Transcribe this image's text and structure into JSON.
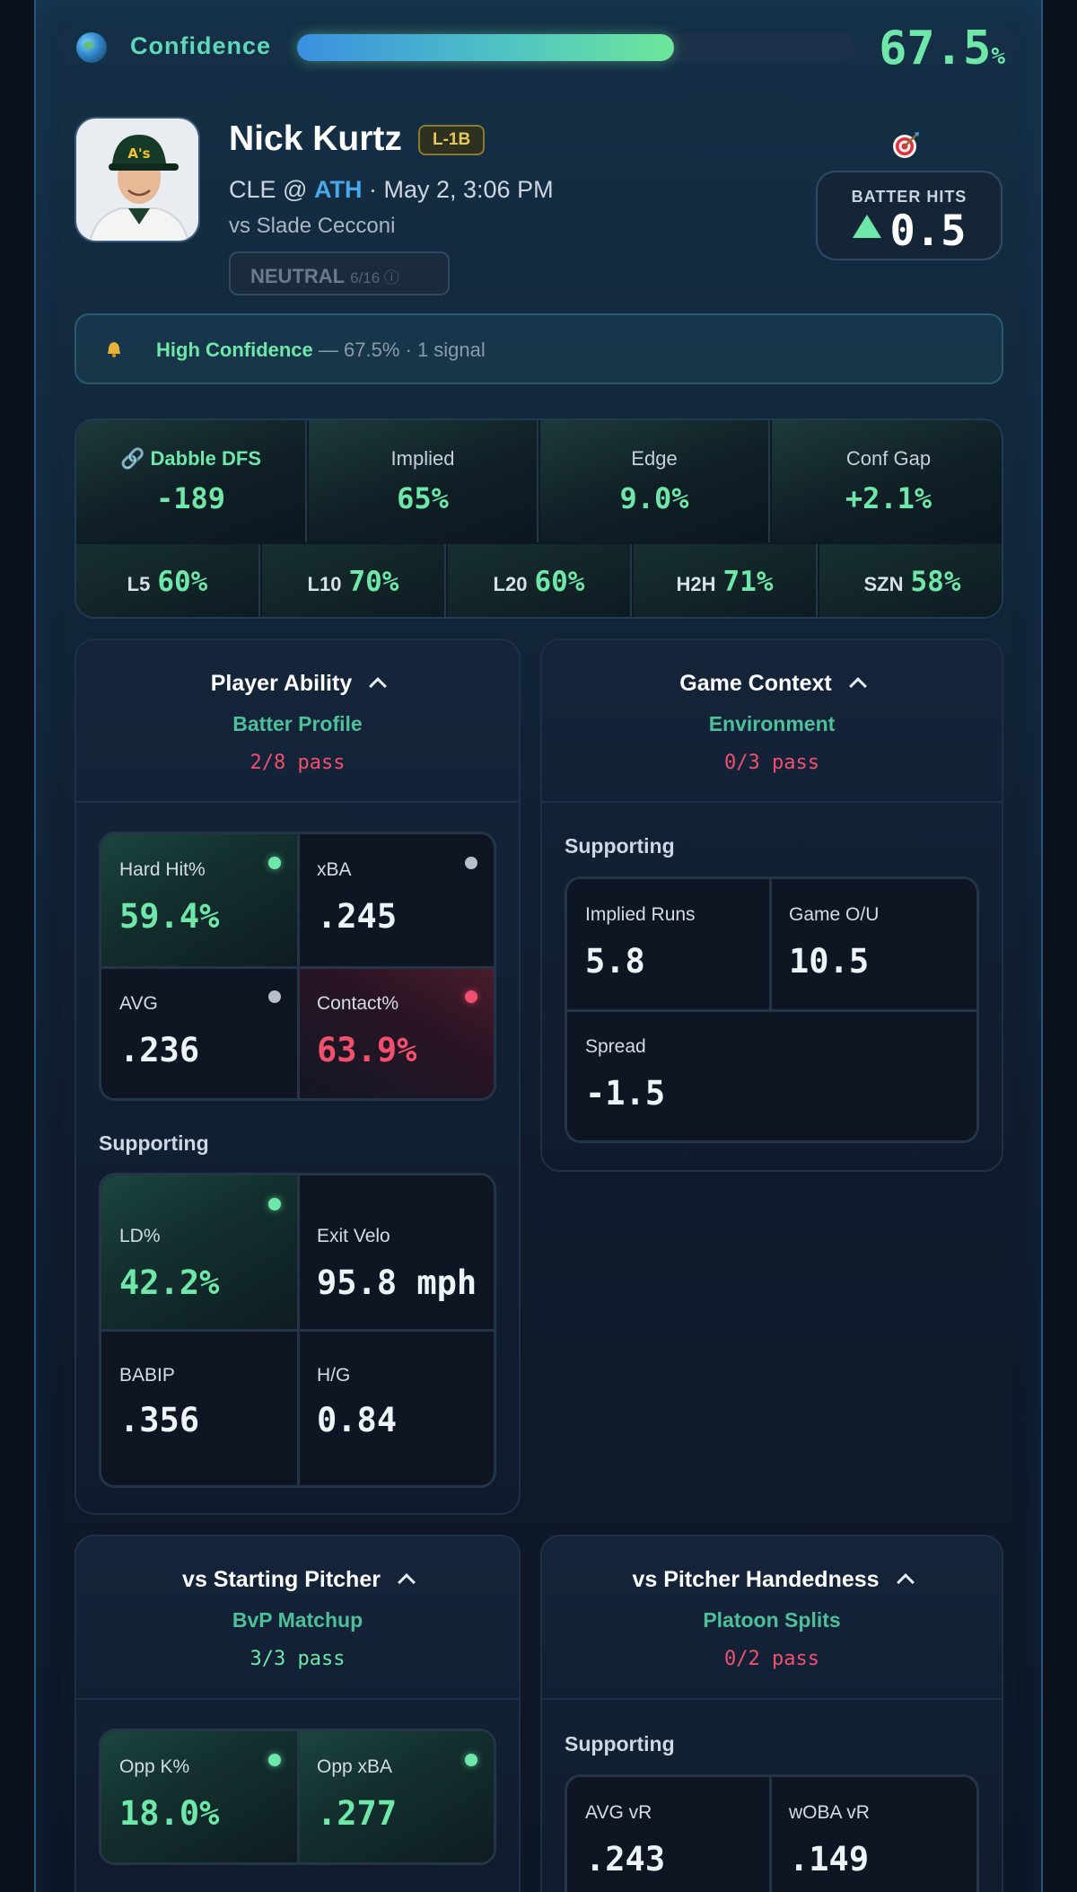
{
  "confidence": {
    "label": "Confidence",
    "value": "67.5",
    "unit": "%",
    "fraction": 0.675
  },
  "player": {
    "name": "Nick Kurtz",
    "position": "L-1B",
    "away": "CLE",
    "at": "@",
    "home": "ATH",
    "datetime": "· May 2, 3:06 PM",
    "opponent": "vs Slade Cecconi",
    "status": "NEUTRAL",
    "status_sub": "6/16 ⓘ"
  },
  "prop": {
    "type": "BATTER HITS",
    "line": "0.5",
    "direction": "over"
  },
  "alert": {
    "title": "High Confidence",
    "detail": "— 67.5% · 1 signal"
  },
  "odds": [
    {
      "label": "Dabble DFS",
      "value": "-189"
    },
    {
      "label": "Implied",
      "value": "65%"
    },
    {
      "label": "Edge",
      "value": "9.0%"
    },
    {
      "label": "Conf Gap",
      "value": "+2.1%"
    }
  ],
  "splits": [
    {
      "label": "L5",
      "value": "60%"
    },
    {
      "label": "L10",
      "value": "70%"
    },
    {
      "label": "L20",
      "value": "60%"
    },
    {
      "label": "H2H",
      "value": "71%"
    },
    {
      "label": "SZN",
      "value": "58%"
    }
  ],
  "sections": {
    "ability": {
      "title": "Player Ability",
      "subtitle": "Batter Profile",
      "pass": "2/8 pass",
      "primary": [
        {
          "label": "Hard Hit%",
          "value": "59.4%",
          "status": "good"
        },
        {
          "label": "xBA",
          "value": ".245",
          "status": "neutral"
        },
        {
          "label": "AVG",
          "value": ".236",
          "status": "neutral"
        },
        {
          "label": "Contact%",
          "value": "63.9%",
          "status": "bad"
        }
      ],
      "supporting_label": "Supporting",
      "supporting": [
        {
          "label": "LD%",
          "value": "42.2%",
          "status": "good"
        },
        {
          "label": "Exit Velo",
          "value": "95.8 mph"
        },
        {
          "label": "BABIP",
          "value": ".356"
        },
        {
          "label": "H/G",
          "value": "0.84"
        }
      ]
    },
    "context": {
      "title": "Game Context",
      "subtitle": "Environment",
      "pass": "0/3 pass",
      "supporting_label": "Supporting",
      "supporting": [
        {
          "label": "Implied Runs",
          "value": "5.8"
        },
        {
          "label": "Game O/U",
          "value": "10.5"
        },
        {
          "label": "Spread",
          "value": "-1.5"
        }
      ]
    },
    "pitcher": {
      "title": "vs Starting Pitcher",
      "subtitle": "BvP Matchup",
      "pass": "3/3 pass",
      "primary": [
        {
          "label": "Opp K%",
          "value": "18.0%",
          "status": "good"
        },
        {
          "label": "Opp xBA",
          "value": ".277",
          "status": "good"
        }
      ]
    },
    "handedness": {
      "title": "vs Pitcher Handedness",
      "subtitle": "Platoon Splits",
      "pass": "0/2 pass",
      "supporting_label": "Supporting",
      "supporting": [
        {
          "label": "AVG vR",
          "value": ".243"
        },
        {
          "label": "wOBA vR",
          "value": ".149"
        }
      ]
    }
  },
  "colors": {
    "accent_green": "#6ee7a8",
    "accent_red": "#f0506e",
    "team_blue": "#4aa8e8",
    "badge_gold": "#e6c85a"
  }
}
